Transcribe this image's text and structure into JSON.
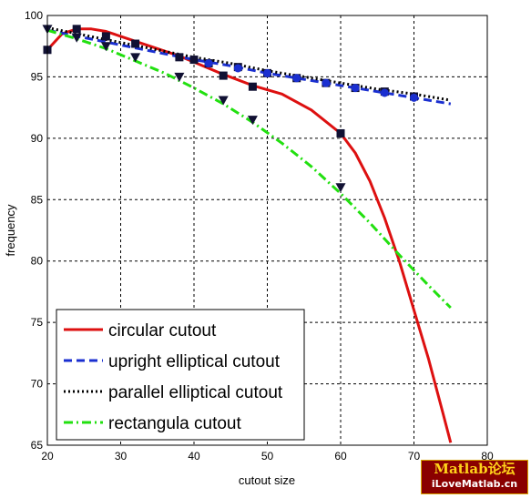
{
  "chart_data": {
    "type": "line",
    "xlabel": "cutout size",
    "ylabel": "frequency",
    "xlim": [
      20,
      80
    ],
    "ylim": [
      65,
      100
    ],
    "xticks": [
      20,
      30,
      40,
      50,
      60,
      70,
      80
    ],
    "yticks": [
      65,
      70,
      75,
      80,
      85,
      90,
      95,
      100
    ],
    "grid": true,
    "legend_position": "bottom-left",
    "series": [
      {
        "name": "circular cutout",
        "color": "#dd1010",
        "style": "solid",
        "x": [
          20,
          22,
          24,
          26,
          28,
          30,
          32,
          35,
          38,
          40,
          44,
          48,
          52,
          56,
          60,
          62,
          64,
          66,
          68,
          70,
          72,
          74,
          75
        ],
        "y": [
          97.2,
          98.5,
          98.9,
          98.9,
          98.7,
          98.3,
          97.9,
          97.3,
          96.7,
          96.2,
          95.2,
          94.3,
          93.6,
          92.3,
          90.4,
          88.8,
          86.5,
          83.5,
          80.0,
          76.0,
          72.0,
          67.5,
          65.2
        ]
      },
      {
        "name": "upright elliptical cutout",
        "color": "#1a2fd0",
        "style": "dashed",
        "x": [
          20,
          25,
          30,
          35,
          40,
          45,
          50,
          55,
          60,
          65,
          70,
          75
        ],
        "y": [
          98.8,
          98.2,
          97.6,
          97.0,
          96.4,
          95.9,
          95.3,
          94.8,
          94.3,
          93.8,
          93.3,
          92.8
        ]
      },
      {
        "name": "parallel elliptical cutout",
        "color": "#000000",
        "style": "dotted",
        "x": [
          20,
          25,
          30,
          35,
          40,
          45,
          50,
          55,
          60,
          65,
          70,
          75
        ],
        "y": [
          99.0,
          98.4,
          97.8,
          97.2,
          96.6,
          96.1,
          95.5,
          95.0,
          94.5,
          94.0,
          93.6,
          93.1
        ]
      },
      {
        "name": "rectangula cutout",
        "color": "#22e010",
        "style": "dashdot",
        "x": [
          20,
          24,
          28,
          32,
          36,
          40,
          44,
          48,
          52,
          56,
          60,
          64,
          68,
          72,
          75
        ],
        "y": [
          98.8,
          98.1,
          97.3,
          96.3,
          95.3,
          94.1,
          92.8,
          91.3,
          89.6,
          87.7,
          85.5,
          83.1,
          80.5,
          78.0,
          76.2
        ]
      }
    ],
    "markers": [
      {
        "shape": "square",
        "color": "#111133",
        "x": [
          20,
          24,
          28,
          32,
          38,
          40,
          42,
          46,
          50,
          54,
          58,
          62,
          66,
          70
        ],
        "y": [
          97.2,
          98.9,
          98.3,
          97.7,
          96.6,
          96.4,
          96.1,
          95.8,
          95.3,
          94.9,
          94.5,
          94.1,
          93.8,
          93.4
        ]
      },
      {
        "shape": "square",
        "color": "#111133",
        "x": [
          44,
          48,
          60
        ],
        "y": [
          95.1,
          94.2,
          90.4
        ]
      },
      {
        "shape": "circle",
        "color": "#1a2fd0",
        "x": [
          42,
          46,
          50,
          54,
          58,
          62,
          66,
          70
        ],
        "y": [
          96.1,
          95.7,
          95.3,
          94.9,
          94.5,
          94.1,
          93.7,
          93.3
        ]
      },
      {
        "shape": "triangle-down",
        "color": "#111133",
        "x": [
          20,
          24,
          28,
          32,
          38,
          44,
          48,
          60
        ],
        "y": [
          98.9,
          98.2,
          97.5,
          96.6,
          95.0,
          93.1,
          91.5,
          86.0
        ]
      }
    ]
  },
  "watermark": {
    "line1": "Matlab论坛",
    "line2": "iLoveMatlab.cn"
  }
}
